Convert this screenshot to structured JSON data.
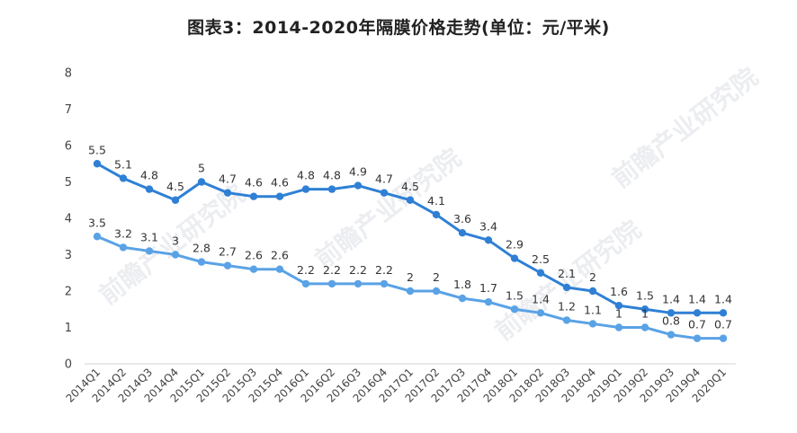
{
  "title": "图表3：2014-2020年隔膜价格走势(单位：元/平米)",
  "watermark": "前瞻产业研究院",
  "colors": {
    "upper": "#2f80d5",
    "lower": "#5aa2e6",
    "axis": "#cfd4da",
    "text": "#333333"
  },
  "chart_data": {
    "type": "line",
    "title": "图表3：2014-2020年隔膜价格走势(单位：元/平米)",
    "xlabel": "",
    "ylabel": "",
    "ylim": [
      0,
      8
    ],
    "yticks": [
      "0",
      "1",
      "2",
      "3",
      "4",
      "5",
      "6",
      "7",
      "8"
    ],
    "grid": false,
    "legend": "none",
    "categories": [
      "2014Q1",
      "2014Q2",
      "2014Q3",
      "2014Q4",
      "2015Q1",
      "2015Q2",
      "2015Q3",
      "2015Q4",
      "2016Q1",
      "2016Q2",
      "2016Q3",
      "2016Q4",
      "2017Q1",
      "2017Q2",
      "2017Q3",
      "2017Q4",
      "2018Q1",
      "2018Q2",
      "2018Q3",
      "2018Q4",
      "2019Q1",
      "2019Q2",
      "2019Q3",
      "2019Q4",
      "2020Q1"
    ],
    "series": [
      {
        "values": [
          5.5,
          5.1,
          4.8,
          4.5,
          5,
          4.7,
          4.6,
          4.6,
          4.8,
          4.8,
          4.9,
          4.7,
          4.5,
          4.1,
          3.6,
          3.4,
          2.9,
          2.5,
          2.1,
          2,
          1.6,
          1.5,
          1.4,
          1.4,
          1.4
        ],
        "labels": [
          "5.5",
          "5.1",
          "4.8",
          "4.5",
          "5",
          "4.7",
          "4.6",
          "4.6",
          "4.8",
          "4.8",
          "4.9",
          "4.7",
          "4.5",
          "4.1",
          "3.6",
          "3.4",
          "2.9",
          "2.5",
          "2.1",
          "2",
          "1.6",
          "1.5",
          "1.4",
          "1.4",
          "1.4"
        ]
      },
      {
        "values": [
          3.5,
          3.2,
          3.1,
          3,
          2.8,
          2.7,
          2.6,
          2.6,
          2.2,
          2.2,
          2.2,
          2.2,
          2,
          2,
          1.8,
          1.7,
          1.5,
          1.4,
          1.2,
          1.1,
          1,
          1,
          0.8,
          0.7,
          0.7
        ],
        "labels": [
          "3.5",
          "3.2",
          "3.1",
          "3",
          "2.8",
          "2.7",
          "2.6",
          "2.6",
          "2.2",
          "2.2",
          "2.2",
          "2.2",
          "2",
          "2",
          "1.8",
          "1.7",
          "1.5",
          "1.4",
          "1.2",
          "1.1",
          "1",
          "1",
          "0.8",
          "0.7",
          "0.7"
        ]
      }
    ]
  }
}
